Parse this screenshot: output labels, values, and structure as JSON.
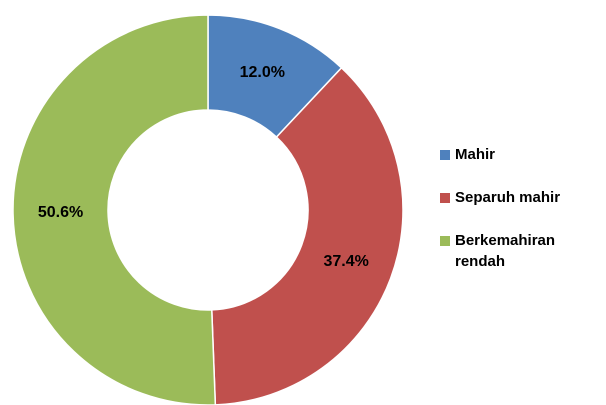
{
  "chart_data": {
    "type": "donut",
    "categories": [
      "Mahir",
      "Separuh mahir",
      "Berkemahiran rendah"
    ],
    "values": [
      12.0,
      37.4,
      50.6
    ],
    "value_labels": [
      "12.0%",
      "37.4%",
      "50.6%"
    ],
    "colors": [
      "#4f81bd",
      "#c0504d",
      "#9bbb59"
    ],
    "legend": "right"
  }
}
